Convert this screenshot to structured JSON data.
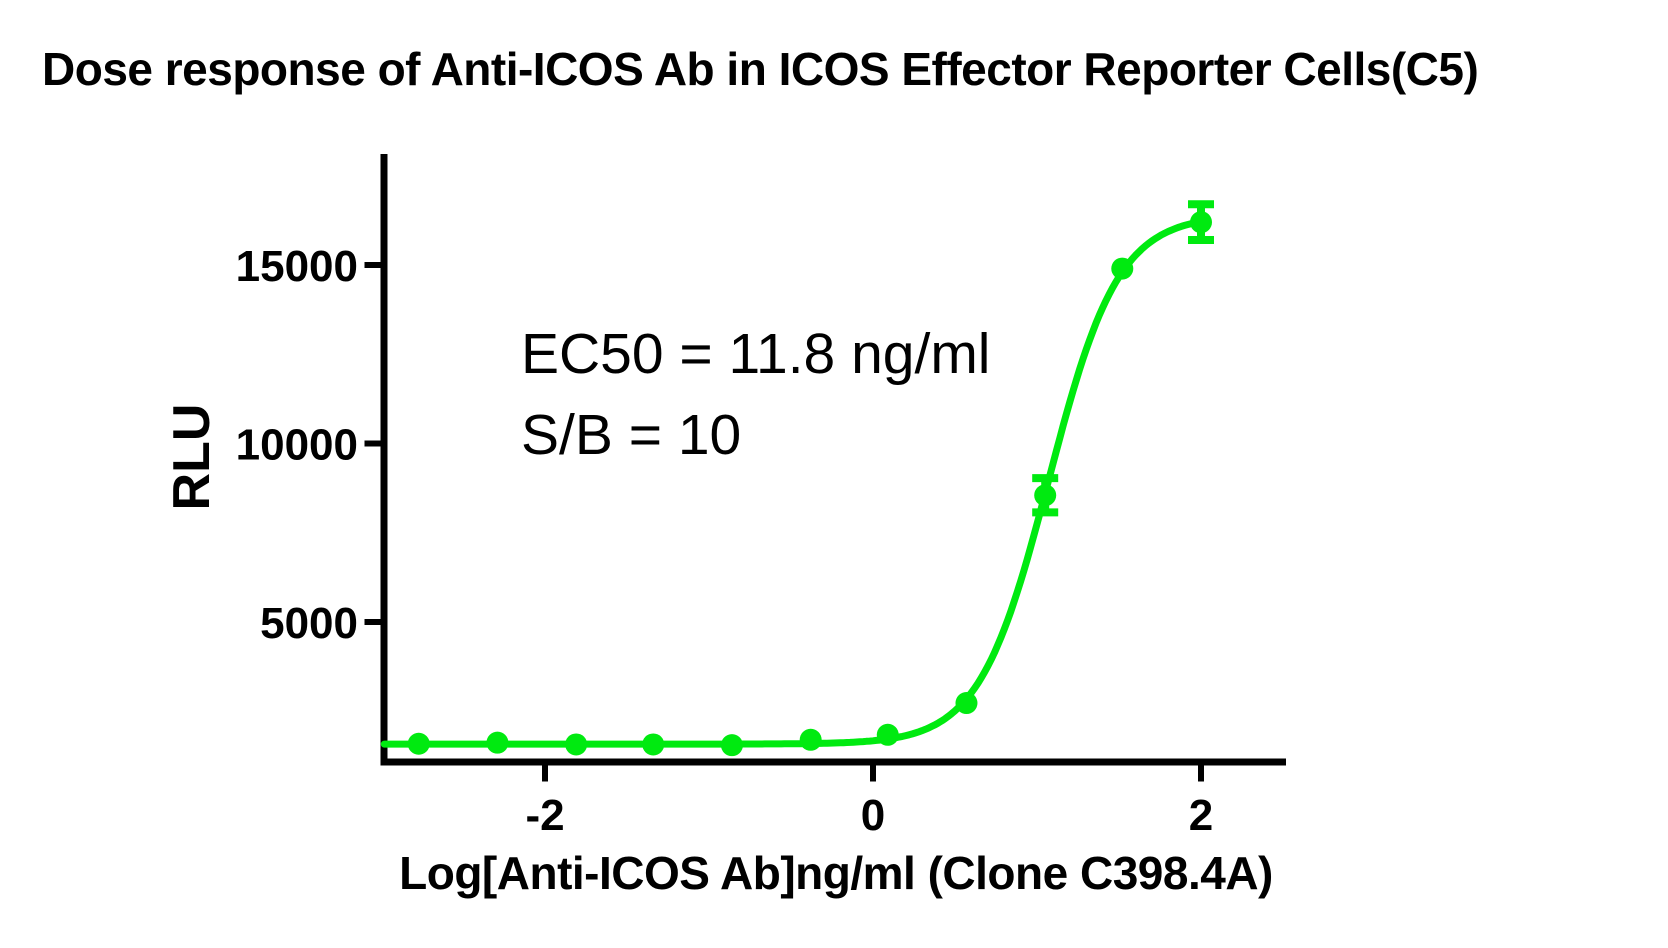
{
  "annotation": {
    "ec50_line": "EC50 = 11.8 ng/ml",
    "sb_line": "S/B = 10"
  },
  "chart_data": {
    "type": "scatter",
    "title": "Dose response of Anti-ICOS Ab in ICOS Effector Reporter Cells(C5)",
    "xlabel": "Log[Anti-ICOS Ab]ng/ml (Clone C398.4A)",
    "ylabel": "RLU",
    "axis_color": "#000000",
    "grid": false,
    "legend": "none",
    "xlim": [
      -3.0,
      2.5
    ],
    "ylim": [
      1000,
      18000
    ],
    "x_ticks": [
      {
        "value": -2,
        "label": "-2"
      },
      {
        "value": 0,
        "label": "0"
      },
      {
        "value": 2,
        "label": "2"
      }
    ],
    "y_ticks": [
      {
        "value": 5000,
        "label": "5000"
      },
      {
        "value": 10000,
        "label": "10000"
      },
      {
        "value": 15000,
        "label": "15000"
      }
    ],
    "ec50_ng_ml": 11.8,
    "signal_to_background": 10,
    "series": [
      {
        "name": "Anti-ICOS Ab (Clone C398.4A)",
        "color": "#00EA10",
        "marker": "circle",
        "points": [
          {
            "log_x": -2.77,
            "rlu": 1590,
            "error": 0
          },
          {
            "log_x": -2.29,
            "rlu": 1620,
            "error": 0
          },
          {
            "log_x": -1.81,
            "rlu": 1570,
            "error": 0
          },
          {
            "log_x": -1.34,
            "rlu": 1570,
            "error": 0
          },
          {
            "log_x": -0.86,
            "rlu": 1550,
            "error": 0
          },
          {
            "log_x": -0.38,
            "rlu": 1700,
            "error": 0
          },
          {
            "log_x": 0.09,
            "rlu": 1840,
            "error": 0
          },
          {
            "log_x": 0.57,
            "rlu": 2730,
            "error": 0
          },
          {
            "log_x": 1.05,
            "rlu": 8550,
            "error": 480
          },
          {
            "log_x": 1.52,
            "rlu": 14900,
            "error": 0
          },
          {
            "log_x": 2.0,
            "rlu": 16200,
            "error": 500
          }
        ],
        "fit": {
          "model": "4PL",
          "bottom": 1580,
          "top": 16400,
          "log_ec50": 1.072,
          "hill": 2.05,
          "curve_x_range": [
            -2.98,
            2.0
          ]
        }
      }
    ]
  }
}
